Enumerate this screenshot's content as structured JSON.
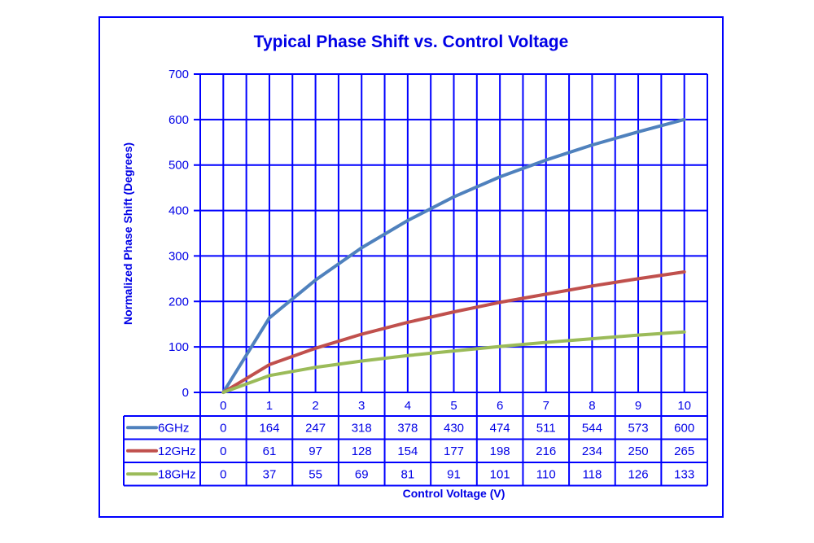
{
  "chart_data": {
    "type": "line",
    "title": "Typical Phase Shift vs. Control Voltage",
    "xlabel": "Control Voltage (V)",
    "ylabel": "Normalized Phase Shift (Degrees)",
    "categories": [
      0,
      1,
      2,
      3,
      4,
      5,
      6,
      7,
      8,
      9,
      10
    ],
    "ylim": [
      0,
      700
    ],
    "yticks": [
      0,
      100,
      200,
      300,
      400,
      500,
      600,
      700
    ],
    "grid": true,
    "legend_position": "data-table",
    "series": [
      {
        "name": "6GHz",
        "color": "#4F81BD",
        "values": [
          0,
          164,
          247,
          318,
          378,
          430,
          474,
          511,
          544,
          573,
          600
        ]
      },
      {
        "name": "12GHz",
        "color": "#C0504D",
        "values": [
          0,
          61,
          97,
          128,
          154,
          177,
          198,
          216,
          234,
          250,
          265
        ]
      },
      {
        "name": "18GHz",
        "color": "#9BBB59",
        "values": [
          0,
          37,
          55,
          69,
          81,
          91,
          101,
          110,
          118,
          126,
          133
        ]
      }
    ]
  },
  "colors": {
    "grid": "#0000FF",
    "text": "#0000E6"
  }
}
